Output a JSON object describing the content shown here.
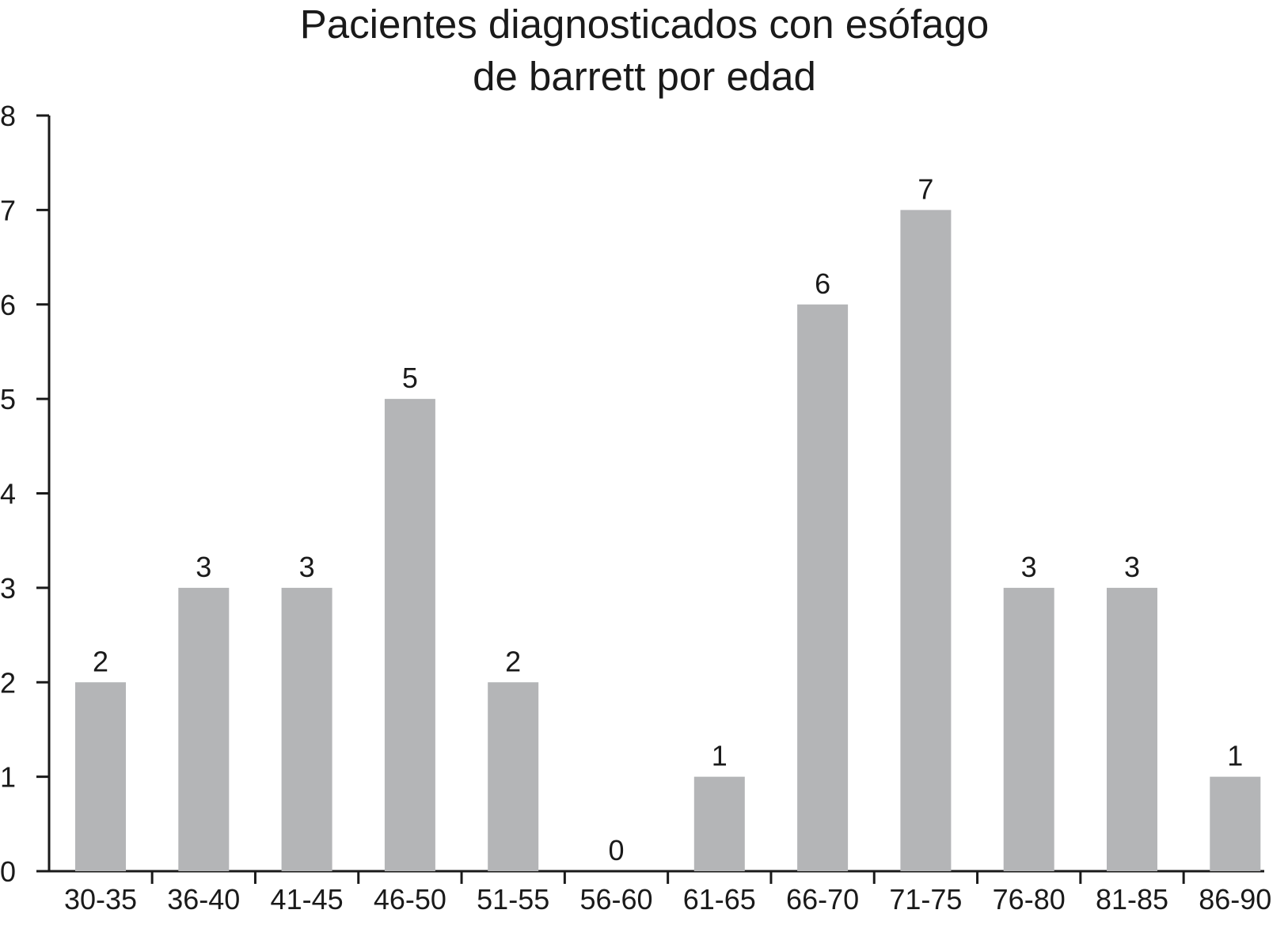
{
  "chart_data": {
    "type": "bar",
    "title_lines": [
      "Pacientes diagnosticados con esófago",
      "de barrett por edad"
    ],
    "xlabel": "",
    "ylabel": "",
    "categories": [
      "30-35",
      "36-40",
      "41-45",
      "46-50",
      "51-55",
      "56-60",
      "61-65",
      "66-70",
      "71-75",
      "76-80",
      "81-85",
      "86-90"
    ],
    "values": [
      2,
      3,
      3,
      5,
      2,
      0,
      1,
      6,
      7,
      3,
      3,
      1
    ],
    "data_labels": [
      "2",
      "3",
      "3",
      "5",
      "2",
      "0",
      "1",
      "6",
      "7",
      "3",
      "3",
      "1"
    ],
    "ylim": [
      0,
      8
    ],
    "yticks": [
      0,
      1,
      2,
      3,
      4,
      5,
      6,
      7,
      8
    ],
    "ytick_labels": [
      "0",
      "1",
      "2",
      "3",
      "4",
      "5",
      "6",
      "7",
      "8"
    ],
    "grid": false,
    "legend": "none",
    "bar_color": "#b4b5b7",
    "text_color": "#1a1a1a"
  }
}
